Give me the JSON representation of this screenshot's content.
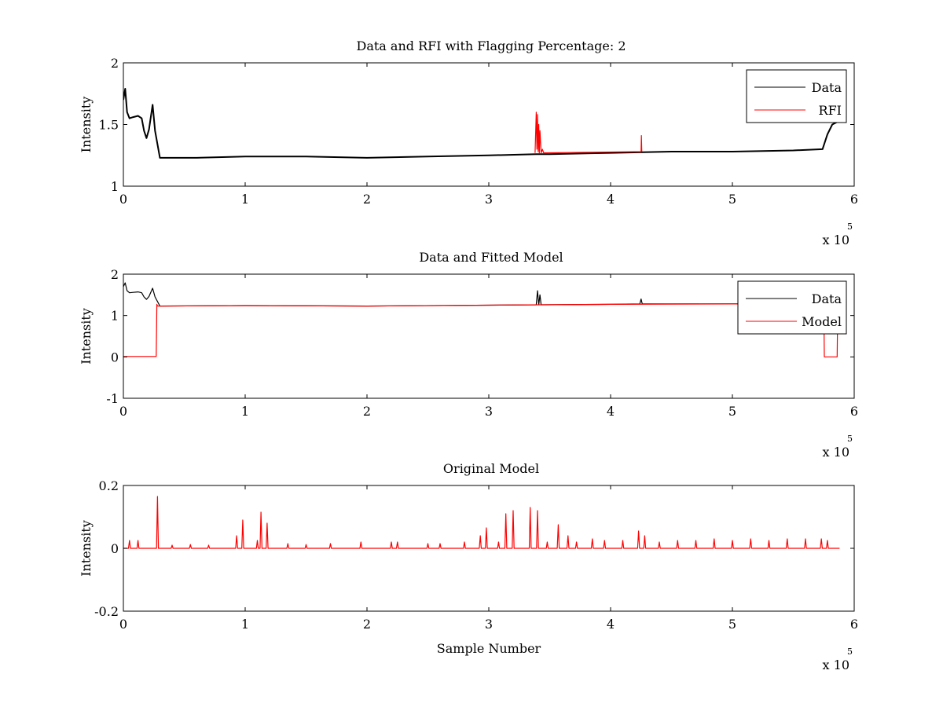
{
  "chart_data": [
    {
      "type": "line",
      "title": "Data and RFI with Flagging Percentage: 2",
      "xlabel": "",
      "ylabel": "Intensity",
      "xlim": [
        0,
        600000
      ],
      "ylim": [
        1,
        2
      ],
      "xticks": [
        0,
        1,
        2,
        3,
        4,
        5,
        6
      ],
      "yticks": [
        "1",
        "1.5",
        "2"
      ],
      "x_multiplier_label": "x 10",
      "x_multiplier_exp": "5",
      "legend": {
        "placement": "top-right",
        "entries": [
          "Data",
          "RFI"
        ]
      },
      "grid": false,
      "series": [
        {
          "name": "Data",
          "color": "#000000",
          "x": [
            0,
            1500,
            3000,
            5000,
            8000,
            12000,
            15000,
            17000,
            19000,
            21000,
            24000,
            26000,
            30000,
            60000,
            100000,
            150000,
            200000,
            250000,
            300000,
            339000,
            350000,
            400000,
            450000,
            500000,
            550000,
            574000,
            578000,
            582000,
            586000
          ],
          "y": [
            1.7,
            1.79,
            1.6,
            1.55,
            1.56,
            1.57,
            1.55,
            1.45,
            1.39,
            1.46,
            1.66,
            1.45,
            1.23,
            1.23,
            1.24,
            1.24,
            1.23,
            1.24,
            1.25,
            1.26,
            1.26,
            1.27,
            1.28,
            1.28,
            1.29,
            1.3,
            1.42,
            1.5,
            1.52
          ]
        },
        {
          "name": "RFI",
          "color": "#ff0000",
          "x": [
            338000,
            339000,
            339500,
            340000,
            340500,
            341000,
            341500,
            342000,
            343000,
            344000,
            345000,
            425000,
            425300,
            425600
          ],
          "y": [
            1.27,
            1.6,
            1.3,
            1.58,
            1.28,
            1.5,
            1.27,
            1.45,
            1.27,
            1.3,
            1.27,
            1.28,
            1.41,
            1.28
          ]
        }
      ]
    },
    {
      "type": "line",
      "title": "Data and Fitted Model",
      "xlabel": "",
      "ylabel": "Intensity",
      "xlim": [
        0,
        600000
      ],
      "ylim": [
        -1,
        2
      ],
      "xticks": [
        0,
        1,
        2,
        3,
        4,
        5,
        6
      ],
      "yticks": [
        "-1",
        "0",
        "1",
        "2"
      ],
      "x_multiplier_label": "x 10",
      "x_multiplier_exp": "5",
      "legend": {
        "placement": "top-right",
        "entries": [
          "Data",
          "Model"
        ]
      },
      "grid": false,
      "series": [
        {
          "name": "Data",
          "color": "#000000",
          "x": [
            0,
            1500,
            3000,
            5000,
            8000,
            12000,
            15000,
            17000,
            19000,
            21000,
            24000,
            26000,
            30000,
            100000,
            200000,
            300000,
            339000,
            340000,
            341000,
            342000,
            343000,
            400000,
            424000,
            425000,
            426000,
            500000,
            580000,
            590000
          ],
          "y": [
            1.7,
            1.79,
            1.6,
            1.55,
            1.56,
            1.57,
            1.55,
            1.45,
            1.39,
            1.46,
            1.66,
            1.45,
            1.23,
            1.24,
            1.23,
            1.25,
            1.26,
            1.6,
            1.26,
            1.5,
            1.26,
            1.27,
            1.28,
            1.4,
            1.28,
            1.28,
            1.29,
            1.3
          ]
        },
        {
          "name": "Model",
          "color": "#ff0000",
          "x": [
            0,
            27000,
            27500,
            28000,
            100000,
            200000,
            300000,
            400000,
            500000,
            575000,
            575500,
            576000,
            586000,
            586500,
            587000
          ],
          "y": [
            0.01,
            0.01,
            1.27,
            1.23,
            1.24,
            1.23,
            1.25,
            1.27,
            1.28,
            1.29,
            0.0,
            0.0,
            0.0,
            1.3,
            1.3
          ]
        }
      ]
    },
    {
      "type": "line",
      "title": "Original Model",
      "xlabel": "Sample Number",
      "ylabel": "Intensity",
      "xlim": [
        0,
        600000
      ],
      "ylim": [
        -0.2,
        0.2
      ],
      "xticks": [
        0,
        1,
        2,
        3,
        4,
        5,
        6
      ],
      "yticks": [
        "-0.2",
        "0",
        "0.2"
      ],
      "x_multiplier_label": "x 10",
      "x_multiplier_exp": "5",
      "grid": false,
      "series": [
        {
          "color": "#ff0000",
          "baseline": 0.0,
          "x_end": 588000,
          "spikes": [
            [
              5000,
              0.025
            ],
            [
              12000,
              0.025
            ],
            [
              28000,
              0.165
            ],
            [
              40000,
              0.01
            ],
            [
              55000,
              0.012
            ],
            [
              70000,
              0.01
            ],
            [
              93000,
              0.04
            ],
            [
              98000,
              0.09
            ],
            [
              110000,
              0.025
            ],
            [
              113000,
              0.115
            ],
            [
              118000,
              0.08
            ],
            [
              135000,
              0.015
            ],
            [
              150000,
              0.012
            ],
            [
              170000,
              0.015
            ],
            [
              195000,
              0.02
            ],
            [
              220000,
              0.02
            ],
            [
              225000,
              0.02
            ],
            [
              250000,
              0.015
            ],
            [
              260000,
              0.015
            ],
            [
              280000,
              0.02
            ],
            [
              293000,
              0.04
            ],
            [
              298000,
              0.065
            ],
            [
              308000,
              0.02
            ],
            [
              314000,
              0.11
            ],
            [
              320000,
              0.12
            ],
            [
              334000,
              0.13
            ],
            [
              340000,
              0.12
            ],
            [
              348000,
              0.02
            ],
            [
              357000,
              0.075
            ],
            [
              365000,
              0.04
            ],
            [
              372000,
              0.02
            ],
            [
              385000,
              0.03
            ],
            [
              395000,
              0.025
            ],
            [
              410000,
              0.025
            ],
            [
              423000,
              0.055
            ],
            [
              428000,
              0.04
            ],
            [
              440000,
              0.02
            ],
            [
              455000,
              0.025
            ],
            [
              470000,
              0.025
            ],
            [
              485000,
              0.03
            ],
            [
              500000,
              0.025
            ],
            [
              515000,
              0.03
            ],
            [
              530000,
              0.025
            ],
            [
              545000,
              0.03
            ],
            [
              560000,
              0.03
            ],
            [
              573000,
              0.03
            ],
            [
              578000,
              0.025
            ]
          ]
        }
      ]
    }
  ]
}
